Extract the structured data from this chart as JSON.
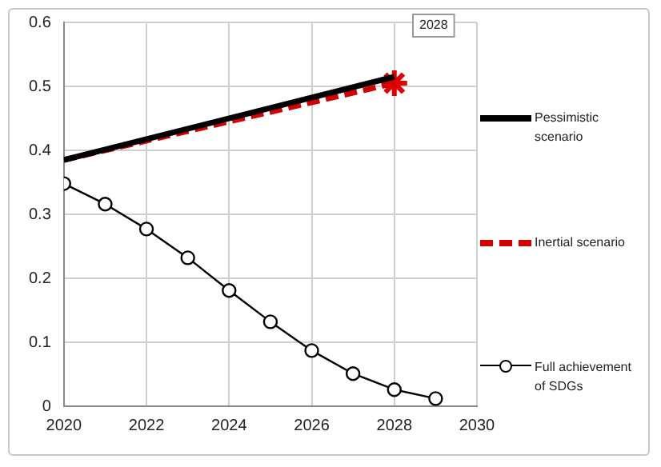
{
  "chart_data": {
    "type": "line",
    "xlim": [
      2020,
      2030
    ],
    "xticks": [
      2020,
      2022,
      2024,
      2026,
      2028,
      2030
    ],
    "ylim": [
      0,
      0.6
    ],
    "yticks": [
      0,
      0.1,
      0.2,
      0.3,
      0.4,
      0.5,
      0.6
    ],
    "grid": true,
    "legend": "right",
    "annotations": [
      "2028"
    ],
    "series": [
      {
        "name": "Pessimistic scenario",
        "color": "#000000",
        "x": [
          2020,
          2028
        ],
        "values": [
          0.385,
          0.515
        ],
        "marker": "none",
        "line_style": "solid"
      },
      {
        "name": "Inertial scenario",
        "color": "#d40000",
        "x": [
          2020,
          2028
        ],
        "values": [
          0.385,
          0.505
        ],
        "marker": "none",
        "line_style": "dashed"
      },
      {
        "type": "scatter",
        "color": "#e00000",
        "x": [
          2028
        ],
        "values": [
          0.505
        ],
        "marker": "cross"
      },
      {
        "name": "Full achievement of SDGs",
        "color": "#000000",
        "x": [
          2020,
          2021,
          2022,
          2023,
          2024,
          2025,
          2026,
          2027,
          2028,
          2029
        ],
        "values": [
          0.348,
          0.316,
          0.277,
          0.232,
          0.181,
          0.132,
          0.087,
          0.051,
          0.026,
          0.012
        ],
        "marker": "circle",
        "line_style": "solid"
      }
    ]
  }
}
